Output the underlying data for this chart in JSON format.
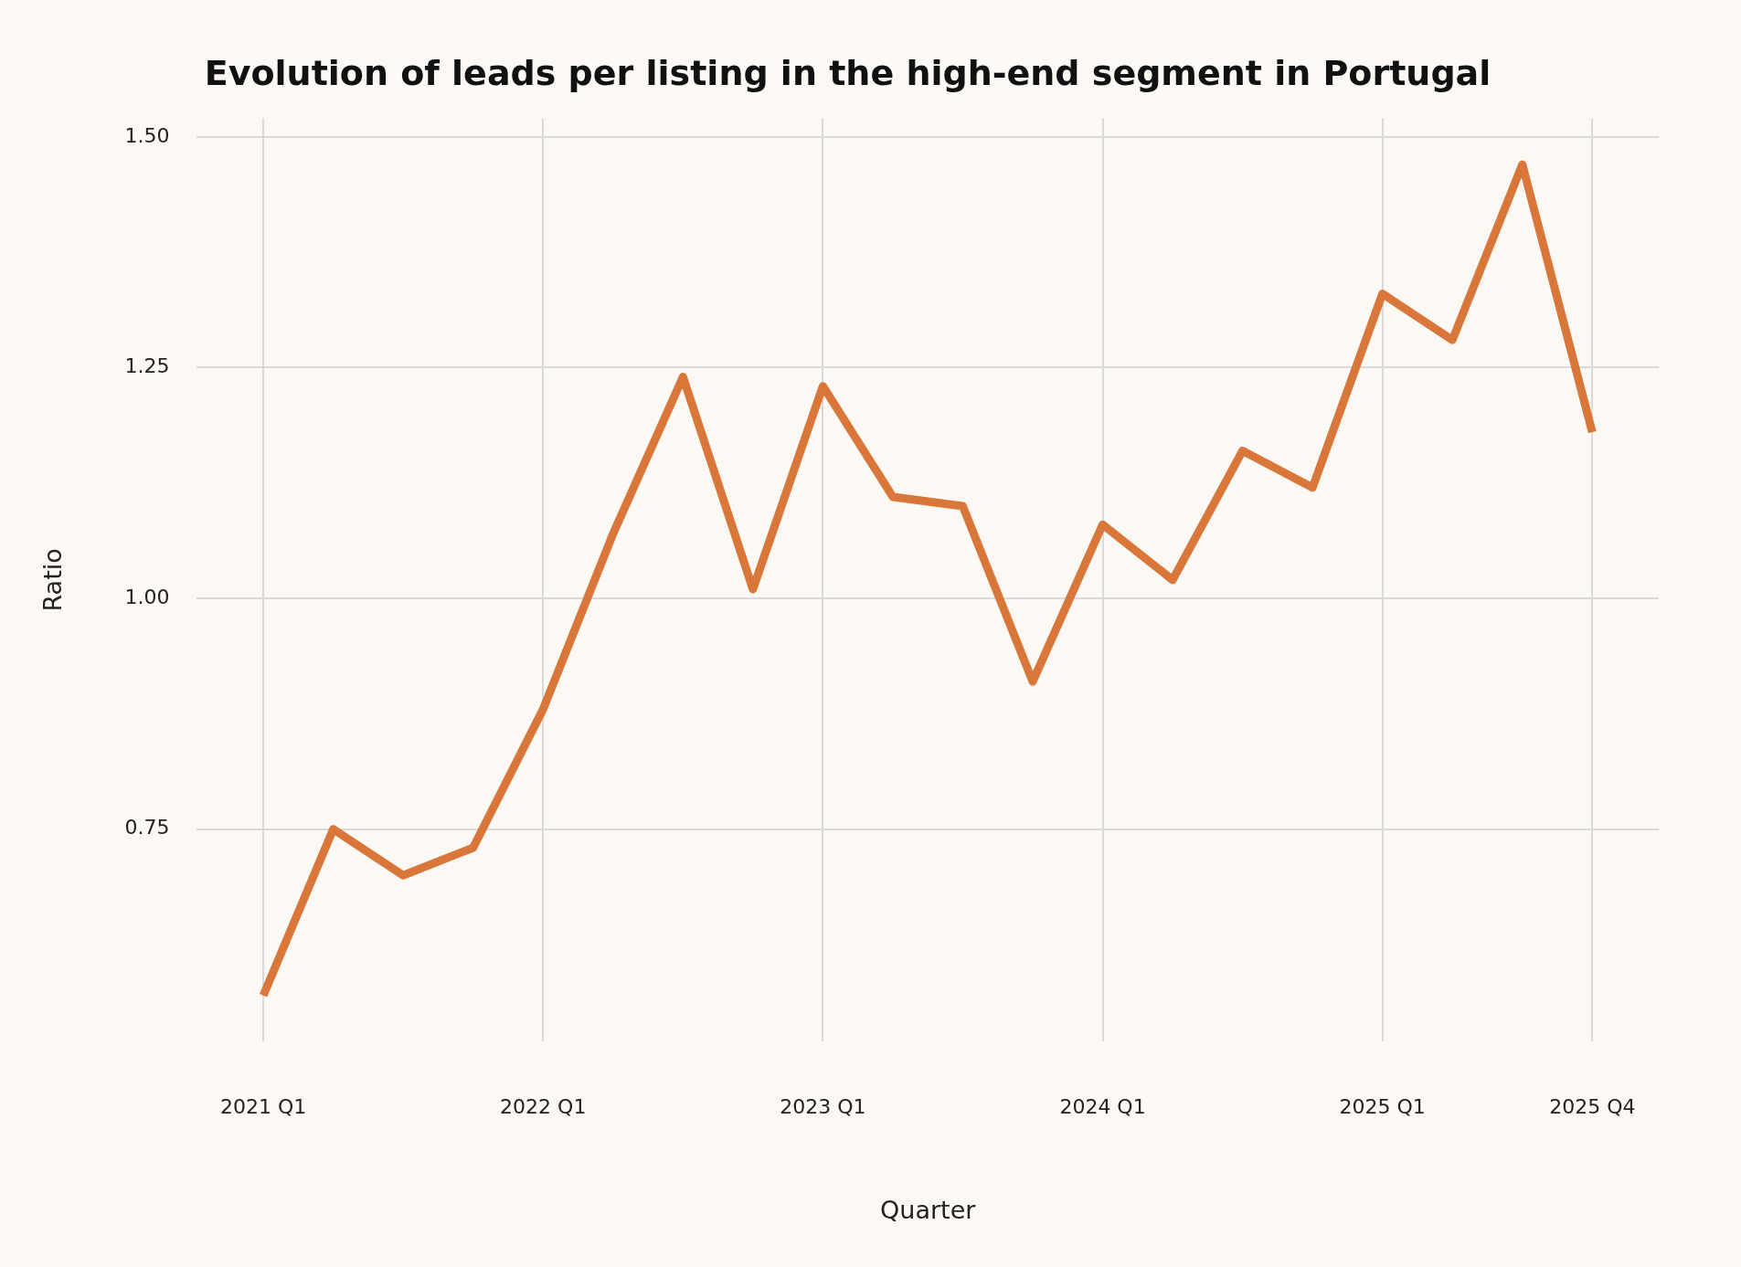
{
  "chart_data": {
    "type": "line",
    "title": "Evolution of leads per listing in the high-end segment in Portugal",
    "xlabel": "Quarter",
    "ylabel": "Ratio",
    "categories": [
      "2021 Q1",
      null,
      null,
      null,
      "2022 Q1",
      null,
      null,
      null,
      "2023 Q1",
      null,
      null,
      null,
      "2024 Q1",
      null,
      null,
      null,
      "2025 Q1",
      null,
      null,
      "2025 Q4"
    ],
    "series": [
      {
        "color": "#d9773a",
        "values": [
          0.57,
          0.75,
          0.7,
          0.73,
          0.88,
          1.07,
          1.24,
          1.01,
          1.23,
          1.11,
          1.1,
          0.91,
          1.08,
          1.02,
          1.16,
          1.12,
          1.33,
          1.28,
          1.47,
          1.18
        ]
      }
    ],
    "ylim": [
      0.52,
      1.52
    ],
    "yticks": [
      {
        "value": 0.75,
        "label": "0.75"
      },
      {
        "value": 1,
        "label": "1.00"
      },
      {
        "value": 1.25,
        "label": "1.25"
      },
      {
        "value": 1.5,
        "label": "1.50"
      }
    ],
    "grid": true,
    "marker": "none",
    "line_style": "solid"
  }
}
